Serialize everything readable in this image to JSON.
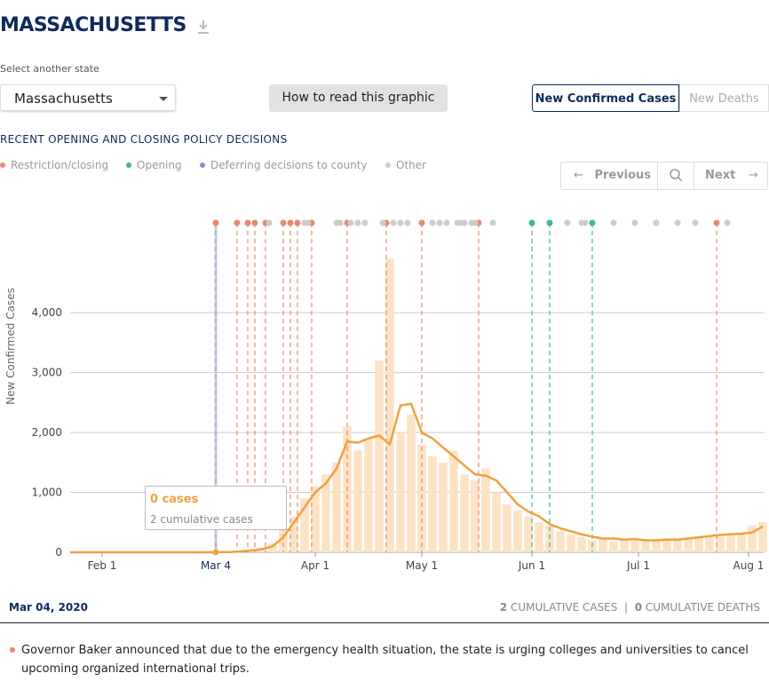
{
  "header": {
    "title": "MASSACHUSETTS",
    "select_label": "Select another state",
    "state": "Massachusetts",
    "help_button": "How to read this graphic",
    "tabs": [
      "New Confirmed Cases",
      "New Deaths"
    ],
    "section_title": "RECENT OPENING AND CLOSING POLICY DECISIONS",
    "nav": {
      "previous": "Previous",
      "next": "Next"
    }
  },
  "chart_data": {
    "type": "bar",
    "y_label": "New Confirmed Cases",
    "x": [
      "2020-01-23",
      "2020-01-26",
      "2020-01-29",
      "2020-02-01",
      "2020-02-04",
      "2020-02-07",
      "2020-02-10",
      "2020-02-13",
      "2020-02-16",
      "2020-02-19",
      "2020-02-22",
      "2020-02-25",
      "2020-02-28",
      "2020-03-02",
      "2020-03-05",
      "2020-03-08",
      "2020-03-11",
      "2020-03-14",
      "2020-03-17",
      "2020-03-20",
      "2020-03-23",
      "2020-03-26",
      "2020-03-29",
      "2020-04-01",
      "2020-04-04",
      "2020-04-07",
      "2020-04-10",
      "2020-04-13",
      "2020-04-16",
      "2020-04-19",
      "2020-04-22",
      "2020-04-25",
      "2020-04-28",
      "2020-05-01",
      "2020-05-04",
      "2020-05-07",
      "2020-05-10",
      "2020-05-13",
      "2020-05-16",
      "2020-05-19",
      "2020-05-22",
      "2020-05-25",
      "2020-05-28",
      "2020-05-31",
      "2020-06-03",
      "2020-06-06",
      "2020-06-09",
      "2020-06-12",
      "2020-06-15",
      "2020-06-18",
      "2020-06-21",
      "2020-06-24",
      "2020-06-27",
      "2020-06-30",
      "2020-07-03",
      "2020-07-06",
      "2020-07-09",
      "2020-07-12",
      "2020-07-15",
      "2020-07-18",
      "2020-07-21",
      "2020-07-24",
      "2020-07-27",
      "2020-07-30",
      "2020-08-02",
      "2020-08-05"
    ],
    "series": [
      {
        "name": "New Confirmed Cases",
        "color": "#fde3c6",
        "values": [
          0,
          0,
          0,
          0,
          0,
          0,
          0,
          0,
          0,
          0,
          0,
          0,
          0,
          0,
          3,
          10,
          20,
          40,
          80,
          150,
          400,
          600,
          900,
          1100,
          1300,
          1500,
          2100,
          1700,
          1900,
          3200,
          4900,
          2000,
          2300,
          1800,
          1600,
          1500,
          1700,
          1300,
          1200,
          1400,
          1000,
          800,
          700,
          600,
          500,
          450,
          350,
          300,
          250,
          200,
          220,
          180,
          200,
          190,
          180,
          190,
          220,
          200,
          240,
          260,
          280,
          300,
          320,
          330,
          450,
          500
        ]
      },
      {
        "color": "#f0a040",
        "values": [
          0,
          0,
          0,
          0,
          0,
          0,
          0,
          0,
          0,
          0,
          0,
          0,
          0,
          0,
          2,
          5,
          15,
          30,
          50,
          100,
          250,
          500,
          750,
          1000,
          1150,
          1400,
          1850,
          1830,
          1900,
          1950,
          1800,
          2450,
          2480,
          2000,
          1900,
          1750,
          1600,
          1450,
          1300,
          1280,
          1200,
          1000,
          800,
          680,
          600,
          470,
          400,
          350,
          300,
          260,
          230,
          230,
          210,
          220,
          200,
          200,
          210,
          210,
          230,
          250,
          270,
          290,
          300,
          310,
          330,
          430
        ]
      }
    ],
    "xlim": [
      "2020-01-23",
      "2020-08-05"
    ],
    "xticks": [
      {
        "value": "2020-02-01",
        "label": "Feb 1"
      },
      {
        "value": "2020-04-01",
        "label": "Apr 1"
      },
      {
        "value": "2020-05-01",
        "label": "May 1"
      },
      {
        "value": "2020-06-01",
        "label": "Jun 1"
      },
      {
        "value": "2020-07-01",
        "label": "Jul 1"
      },
      {
        "value": "2020-08-01",
        "label": "Aug 1"
      }
    ],
    "ylim": [
      0,
      5500
    ],
    "yticks": [
      0,
      {
        "value": 1000,
        "label": "1,000"
      },
      {
        "value": 2000,
        "label": "2,000"
      },
      {
        "value": 3000,
        "label": "3,000"
      },
      {
        "value": 4000,
        "label": "4,000"
      }
    ],
    "grid": true,
    "event_types": [
      {
        "name": "Restriction/closing",
        "color": "#e8896e"
      },
      {
        "name": "Opening",
        "color": "#3cb89a"
      },
      {
        "name": "Deferring decisions to county",
        "color": "#8a8ee0"
      },
      {
        "name": "Other",
        "color": "#cccccc"
      }
    ],
    "events": [
      {
        "date": "2020-03-04",
        "type": "Restriction/closing"
      },
      {
        "date": "2020-03-10",
        "type": "Restriction/closing"
      },
      {
        "date": "2020-03-13",
        "type": "Restriction/closing"
      },
      {
        "date": "2020-03-15",
        "type": "Restriction/closing"
      },
      {
        "date": "2020-03-18",
        "type": "Restriction/closing"
      },
      {
        "date": "2020-03-23",
        "type": "Restriction/closing"
      },
      {
        "date": "2020-03-25",
        "type": "Restriction/closing"
      },
      {
        "date": "2020-03-27",
        "type": "Restriction/closing"
      },
      {
        "date": "2020-03-31",
        "type": "Restriction/closing"
      },
      {
        "date": "2020-04-10",
        "type": "Restriction/closing"
      },
      {
        "date": "2020-04-21",
        "type": "Restriction/closing"
      },
      {
        "date": "2020-05-01",
        "type": "Restriction/closing"
      },
      {
        "date": "2020-05-17",
        "type": "Restriction/closing"
      },
      {
        "date": "2020-07-23",
        "type": "Restriction/closing"
      },
      {
        "date": "2020-06-01",
        "type": "Opening"
      },
      {
        "date": "2020-06-06",
        "type": "Opening"
      },
      {
        "date": "2020-06-18",
        "type": "Opening"
      },
      {
        "date": "2020-03-19",
        "type": "Other"
      },
      {
        "date": "2020-03-29",
        "type": "Other"
      },
      {
        "date": "2020-03-30",
        "type": "Other"
      },
      {
        "date": "2020-04-07",
        "type": "Other"
      },
      {
        "date": "2020-04-08",
        "type": "Other"
      },
      {
        "date": "2020-04-11",
        "type": "Other"
      },
      {
        "date": "2020-04-13",
        "type": "Other"
      },
      {
        "date": "2020-04-15",
        "type": "Other"
      },
      {
        "date": "2020-04-20",
        "type": "Other"
      },
      {
        "date": "2020-04-23",
        "type": "Other"
      },
      {
        "date": "2020-04-25",
        "type": "Other"
      },
      {
        "date": "2020-04-27",
        "type": "Other"
      },
      {
        "date": "2020-05-04",
        "type": "Other"
      },
      {
        "date": "2020-05-06",
        "type": "Other"
      },
      {
        "date": "2020-05-08",
        "type": "Other"
      },
      {
        "date": "2020-05-11",
        "type": "Other"
      },
      {
        "date": "2020-05-12",
        "type": "Other"
      },
      {
        "date": "2020-05-13",
        "type": "Other"
      },
      {
        "date": "2020-05-15",
        "type": "Other"
      },
      {
        "date": "2020-05-16",
        "type": "Other"
      },
      {
        "date": "2020-05-21",
        "type": "Other"
      },
      {
        "date": "2020-06-11",
        "type": "Other"
      },
      {
        "date": "2020-06-15",
        "type": "Other"
      },
      {
        "date": "2020-06-16",
        "type": "Other"
      },
      {
        "date": "2020-06-24",
        "type": "Other"
      },
      {
        "date": "2020-06-30",
        "type": "Other"
      },
      {
        "date": "2020-07-06",
        "type": "Other"
      },
      {
        "date": "2020-07-12",
        "type": "Other"
      },
      {
        "date": "2020-07-17",
        "type": "Other"
      },
      {
        "date": "2020-07-26",
        "type": "Other"
      }
    ],
    "selected": {
      "date": "2020-03-04",
      "label": "Mar 4",
      "highlight": "#b9d3ef"
    },
    "tooltip": {
      "title": "0 cases",
      "subtitle": "2 cumulative cases"
    }
  },
  "footer": {
    "date": "Mar 04, 2020",
    "cases": "2",
    "cases_label": "CUMULATIVE CASES",
    "separator": "|",
    "deaths": "0",
    "deaths_label": "CUMULATIVE DEATHS",
    "description": "Governor Baker announced that due to the emergency health situation, the state is urging colleges and universities to cancel upcoming organized international trips."
  }
}
